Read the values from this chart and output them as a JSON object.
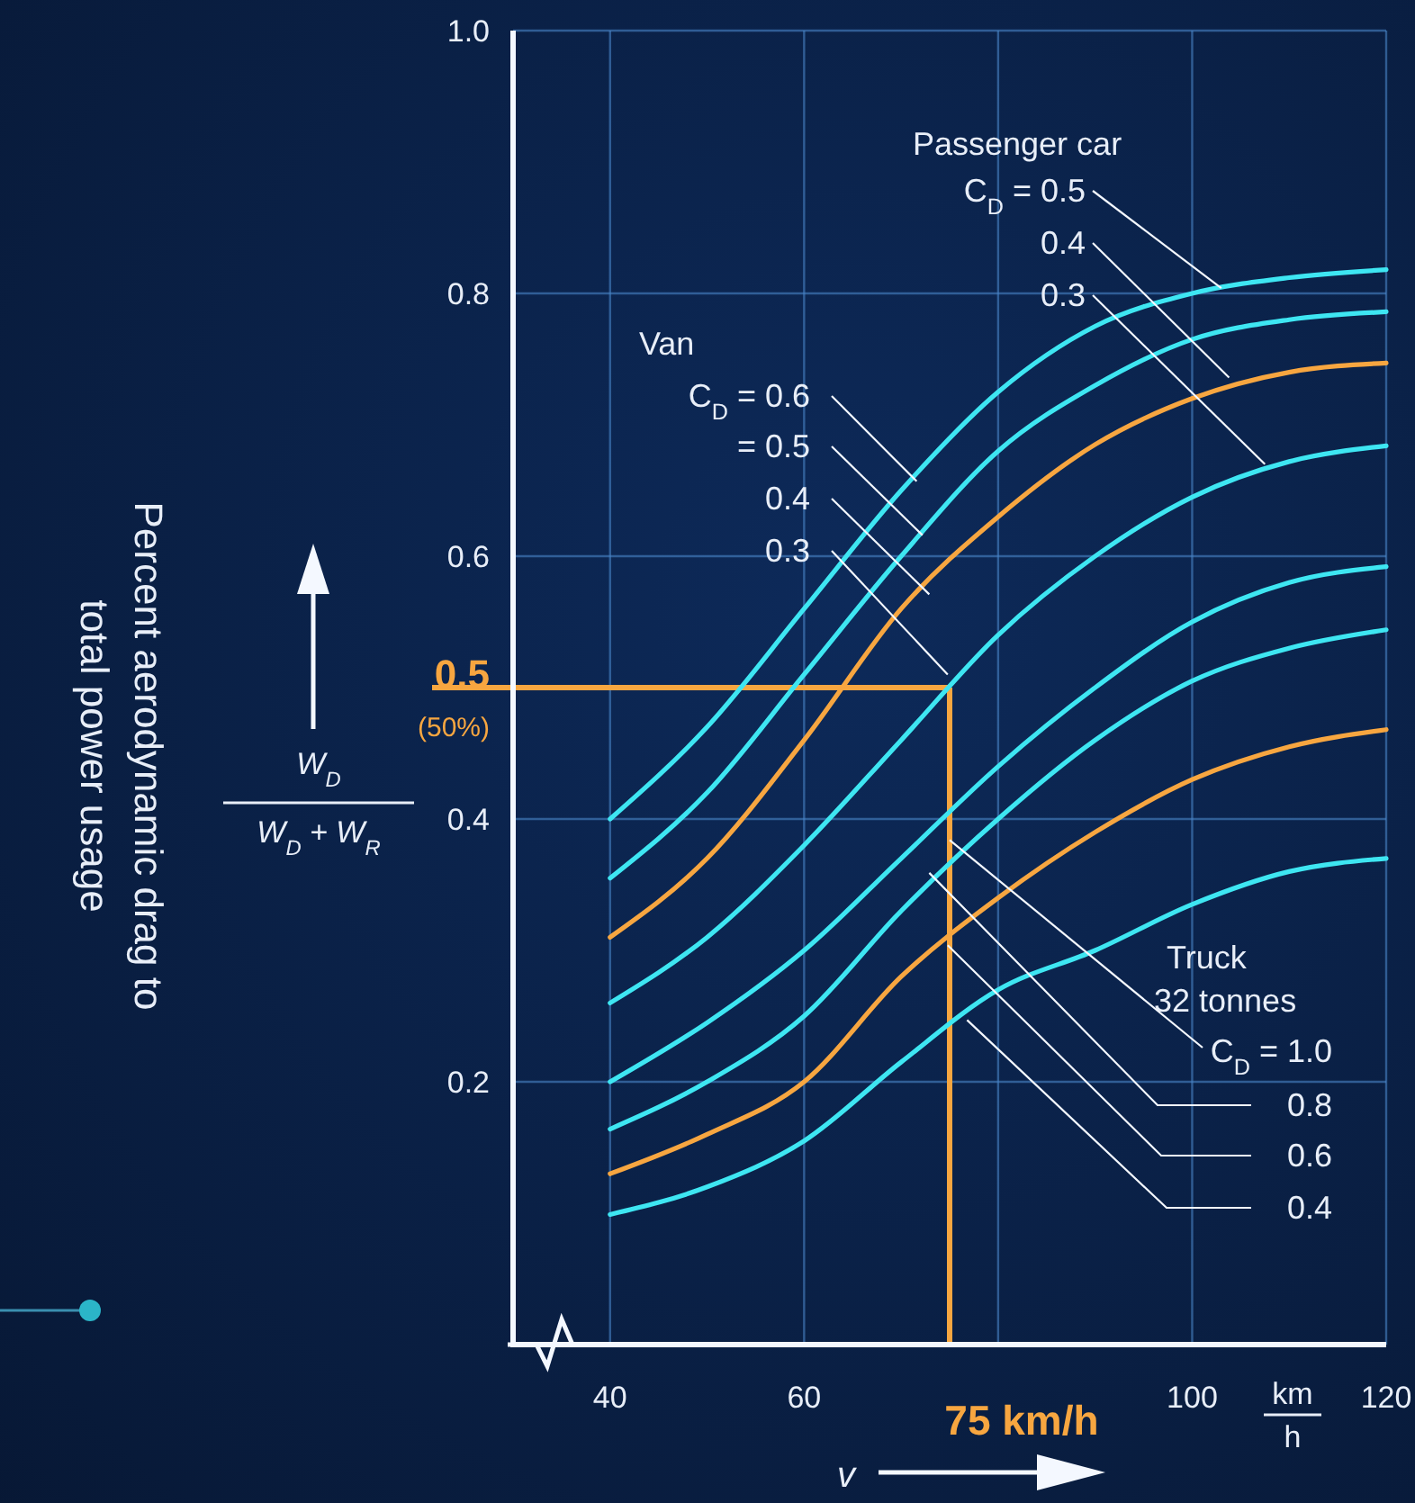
{
  "chart_data": {
    "type": "line",
    "xlabel": "v",
    "x": [
      40,
      50,
      60,
      70,
      80,
      90,
      100,
      110,
      120
    ],
    "series": [
      {
        "color": "#3ee6f2",
        "values": [
          0.4,
          0.47,
          0.56,
          0.65,
          0.725,
          0.775,
          0.8,
          0.812,
          0.818
        ]
      },
      {
        "color": "#3ee6f2",
        "values": [
          0.355,
          0.42,
          0.51,
          0.6,
          0.68,
          0.73,
          0.765,
          0.78,
          0.786
        ]
      },
      {
        "color": "#f7a640",
        "values": [
          0.31,
          0.37,
          0.46,
          0.56,
          0.63,
          0.685,
          0.72,
          0.74,
          0.747
        ]
      },
      {
        "color": "#3ee6f2",
        "values": [
          0.26,
          0.31,
          0.38,
          0.46,
          0.54,
          0.6,
          0.645,
          0.672,
          0.684
        ]
      },
      {
        "color": "#3ee6f2",
        "values": [
          0.2,
          0.245,
          0.3,
          0.37,
          0.44,
          0.5,
          0.55,
          0.58,
          0.592
        ]
      },
      {
        "color": "#3ee6f2",
        "values": [
          0.164,
          0.2,
          0.25,
          0.33,
          0.4,
          0.46,
          0.505,
          0.53,
          0.544
        ]
      },
      {
        "color": "#f7a640",
        "values": [
          0.13,
          0.16,
          0.2,
          0.28,
          0.34,
          0.39,
          0.43,
          0.455,
          0.468
        ]
      },
      {
        "color": "#3ee6f2",
        "values": [
          0.099,
          0.12,
          0.155,
          0.215,
          0.27,
          0.3,
          0.335,
          0.36,
          0.37
        ]
      }
    ],
    "xlim": [
      30,
      120
    ],
    "ylim": [
      0,
      1
    ],
    "xticks": [
      40,
      60,
      {
        "value": 80,
        "label": null
      },
      100,
      120
    ],
    "yticks": [
      0.2,
      0.4,
      0.6,
      0.8,
      {
        "value": 1,
        "label": "1.0"
      }
    ],
    "grid": true,
    "marker": "none",
    "line_style": "solid",
    "ref_lines": [
      {
        "axis": "y",
        "value": 0.5,
        "label": "0.5 (50%)",
        "color": "#f7a640"
      },
      {
        "axis": "x",
        "value": 75,
        "label": "75 km/h",
        "color": "#f7a640"
      }
    ],
    "annotations": [
      "Passenger car",
      {
        "text": "C$_{D}$ = 0.5",
        "x": 103,
        "y": 0.804
      },
      {
        "text": "0.4",
        "x": 103.8,
        "y": 0.736
      },
      {
        "text": "0.3",
        "x": 107.5,
        "y": 0.67
      },
      "Van",
      {
        "text": "C$_{D}$ = 0.6",
        "x": 71.6,
        "y": 0.657
      },
      {
        "text": "= 0.5",
        "x": 72.2,
        "y": 0.616
      },
      {
        "text": "0.4",
        "x": 72.9,
        "y": 0.571
      },
      {
        "text": "0.3",
        "x": 74.8,
        "y": 0.51
      },
      "Truck",
      "32 tonnes",
      {
        "text": "C$_{D}$ = 1.0",
        "x": 75,
        "y": 0.384
      },
      {
        "text": "0.8",
        "x": 72.9,
        "y": 0.359
      },
      {
        "text": "0.6",
        "x": 74.8,
        "y": 0.304
      },
      {
        "text": "0.4",
        "x": 76.8,
        "y": 0.247
      },
      "km",
      "h",
      "W$_{D}$",
      "W$_{D}$ + W$_{R}$",
      "Percent aerodynamic drag to total power usage"
    ]
  }
}
